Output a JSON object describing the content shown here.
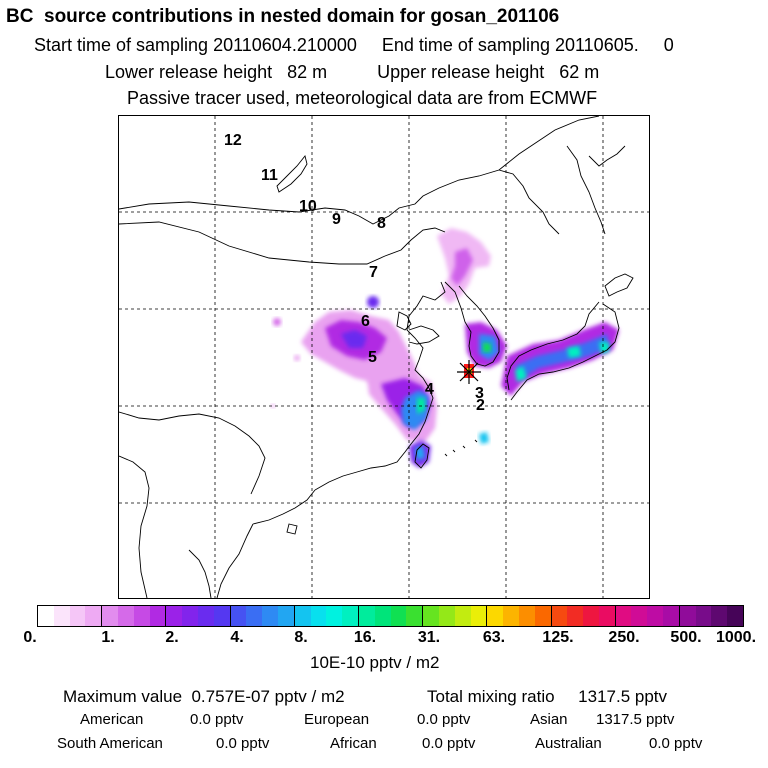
{
  "header": {
    "title": "BC  source contributions in nested domain for gosan_201106",
    "sampling": "Start time of sampling 20110604.210000     End time of sampling 20110605.     0",
    "release": "Lower release height   82 m          Upper release height   62 m",
    "note": "Passive tracer used, meteorological data are from ECMWF"
  },
  "map": {
    "day_labels": [
      "12",
      "11",
      "10",
      "9",
      "8",
      "7",
      "6",
      "5",
      "4",
      "3",
      "2"
    ],
    "marker": "receptor-star",
    "colors": {
      "coast": "#000000",
      "grid": "#000000",
      "marker_outer": "#ff0000",
      "marker_inner": "#ffd000"
    }
  },
  "colorbar": {
    "unit": "10E-10 pptv / m2",
    "tick_labels": [
      "0.",
      "1.",
      "2.",
      "4.",
      "8.",
      "16.",
      "31.",
      "63.",
      "125.",
      "250.",
      "500.",
      "1000."
    ],
    "colors": [
      "#ffffff",
      "#fbe4fb",
      "#f5c6f7",
      "#eeaaf3",
      "#e28cee",
      "#d56ae9",
      "#c64ae5",
      "#b12ae3",
      "#9b22e8",
      "#8224ec",
      "#6a2cef",
      "#5538f1",
      "#4652f2",
      "#3a6ef3",
      "#2e8af3",
      "#22a6f2",
      "#14c4f0",
      "#08e0ee",
      "#00f2e0",
      "#00f0c0",
      "#00ec9c",
      "#00e47a",
      "#10e052",
      "#3ae030",
      "#66e420",
      "#94e818",
      "#c2ec10",
      "#eaee08",
      "#fcd800",
      "#fcb400",
      "#fc8e00",
      "#fa6800",
      "#f64a10",
      "#f22c24",
      "#ee1640",
      "#ea0c62",
      "#e00c82",
      "#d00c96",
      "#be0ca4",
      "#a80ca6",
      "#900c9a",
      "#780c8a",
      "#5e0870",
      "#460458"
    ]
  },
  "summary": {
    "maximum_label": "Maximum value  0.757E-07 pptv / m2",
    "total_label": "Total mixing ratio     1317.5 pptv",
    "american_label": "American",
    "american_value": "0.0 pptv",
    "european_label": "European",
    "european_value": "0.0 pptv",
    "asian_label": "Asian",
    "asian_value": "1317.5 pptv",
    "south_american_label": "South American",
    "south_american_value": "0.0 pptv",
    "african_label": "African",
    "african_value": "0.0 pptv",
    "australian_label": "Australian",
    "australian_value": "0.0 pptv"
  }
}
